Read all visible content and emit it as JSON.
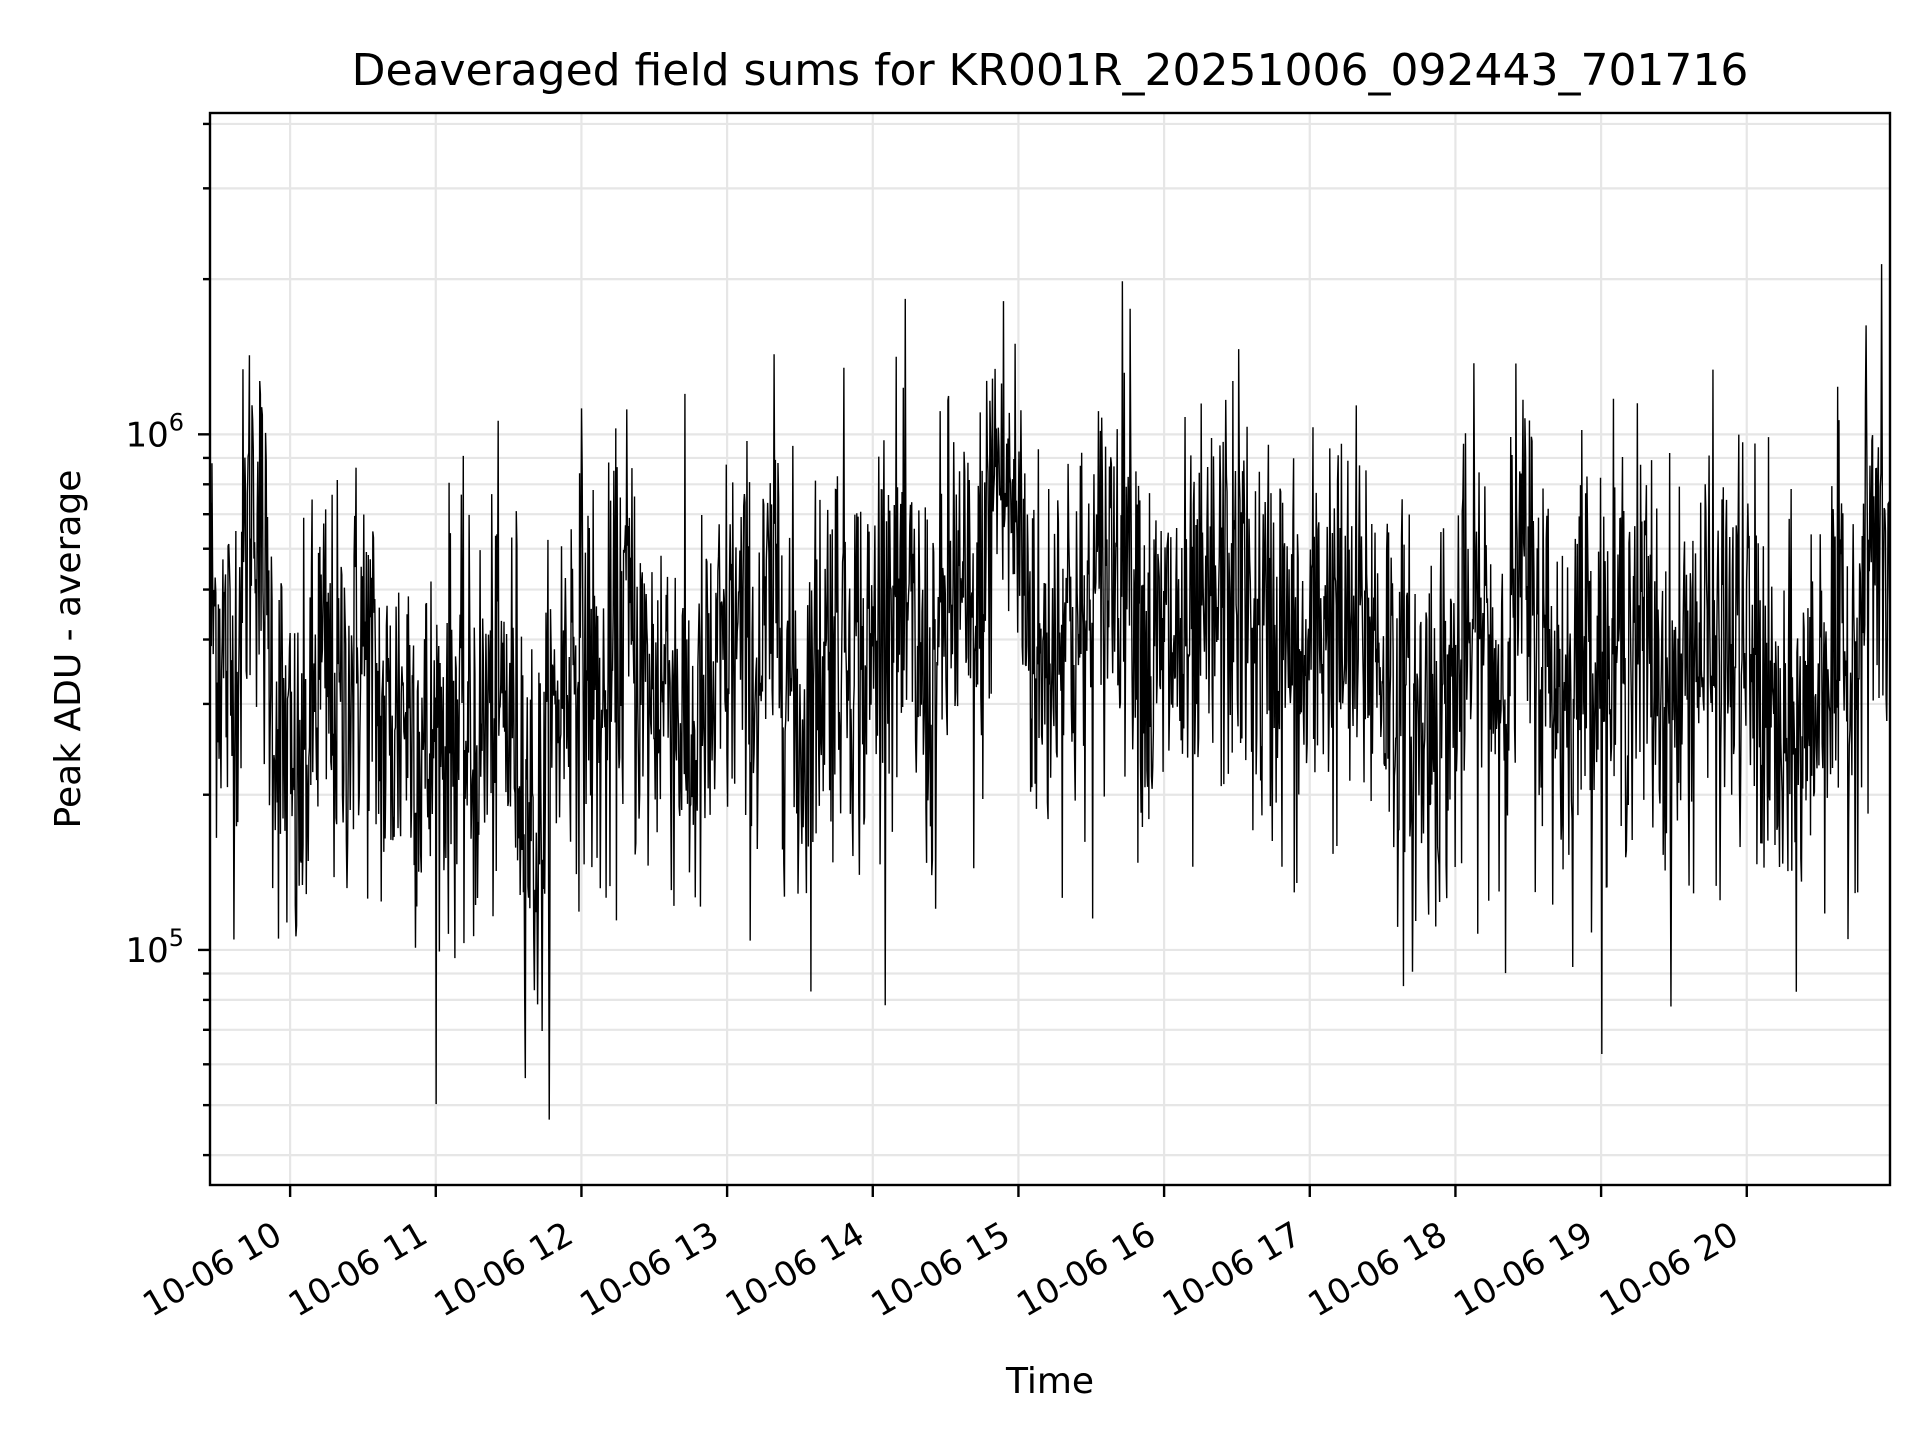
{
  "chart_data": {
    "type": "line",
    "title": "Deaveraged field sums for KR001R_20251006_092443_701716",
    "xlabel": "Time",
    "ylabel": "Peak ADU - average",
    "yscale": "log",
    "xlim": [
      "2025-10-06 09:27",
      "2025-10-06 20:59"
    ],
    "ylim": [
      35000,
      4200000
    ],
    "x_ticks": [
      {
        "value": "2025-10-06 10:00",
        "label": "10-06 10"
      },
      {
        "value": "2025-10-06 11:00",
        "label": "10-06 11"
      },
      {
        "value": "2025-10-06 12:00",
        "label": "10-06 12"
      },
      {
        "value": "2025-10-06 13:00",
        "label": "10-06 13"
      },
      {
        "value": "2025-10-06 14:00",
        "label": "10-06 14"
      },
      {
        "value": "2025-10-06 15:00",
        "label": "10-06 15"
      },
      {
        "value": "2025-10-06 16:00",
        "label": "10-06 16"
      },
      {
        "value": "2025-10-06 17:00",
        "label": "10-06 17"
      },
      {
        "value": "2025-10-06 18:00",
        "label": "10-06 18"
      },
      {
        "value": "2025-10-06 19:00",
        "label": "10-06 19"
      },
      {
        "value": "2025-10-06 20:00",
        "label": "10-06 20"
      }
    ],
    "y_ticks": [
      {
        "value": 100000,
        "base": "10",
        "exp": "5"
      },
      {
        "value": 1000000,
        "base": "10",
        "exp": "6"
      }
    ],
    "grid": true,
    "legend": "none",
    "line_color": "#000000",
    "series": [
      {
        "values_note_free": true,
        "points": [
          [
            "2025-10-06 09:27",
            480000
          ],
          [
            "2025-10-06 09:36",
            320000
          ],
          [
            "2025-10-06 09:45",
            850000
          ],
          [
            "2025-10-06 09:54",
            290000
          ],
          [
            "2025-10-06 10:03",
            180000
          ],
          [
            "2025-10-06 10:12",
            350000
          ],
          [
            "2025-10-06 10:21",
            290000
          ],
          [
            "2025-10-06 10:30",
            400000
          ],
          [
            "2025-10-06 10:39",
            250000
          ],
          [
            "2025-10-06 10:48",
            310000
          ],
          [
            "2025-10-06 10:57",
            230000
          ],
          [
            "2025-10-06 11:06",
            290000
          ],
          [
            "2025-10-06 11:15",
            240000
          ],
          [
            "2025-10-06 11:24",
            300000
          ],
          [
            "2025-10-06 11:33",
            280000
          ],
          [
            "2025-10-06 11:42",
            150000
          ],
          [
            "2025-10-06 11:51",
            320000
          ],
          [
            "2025-10-06 12:00",
            410000
          ],
          [
            "2025-10-06 12:09",
            260000
          ],
          [
            "2025-10-06 12:18",
            470000
          ],
          [
            "2025-10-06 12:27",
            300000
          ],
          [
            "2025-10-06 12:36",
            350000
          ],
          [
            "2025-10-06 12:45",
            240000
          ],
          [
            "2025-10-06 12:54",
            290000
          ],
          [
            "2025-10-06 13:03",
            420000
          ],
          [
            "2025-10-06 13:12",
            330000
          ],
          [
            "2025-10-06 13:21",
            500000
          ],
          [
            "2025-10-06 13:30",
            250000
          ],
          [
            "2025-10-06 13:39",
            380000
          ],
          [
            "2025-10-06 13:48",
            450000
          ],
          [
            "2025-10-06 13:57",
            330000
          ],
          [
            "2025-10-06 14:06",
            520000
          ],
          [
            "2025-10-06 14:15",
            410000
          ],
          [
            "2025-10-06 14:24",
            300000
          ],
          [
            "2025-10-06 14:33",
            520000
          ],
          [
            "2025-10-06 14:42",
            370000
          ],
          [
            "2025-10-06 14:51",
            900000
          ],
          [
            "2025-10-06 15:00",
            650000
          ],
          [
            "2025-10-06 15:09",
            330000
          ],
          [
            "2025-10-06 15:18",
            470000
          ],
          [
            "2025-10-06 15:27",
            380000
          ],
          [
            "2025-10-06 15:36",
            550000
          ],
          [
            "2025-10-06 15:45",
            700000
          ],
          [
            "2025-10-06 15:54",
            330000
          ],
          [
            "2025-10-06 16:03",
            400000
          ],
          [
            "2025-10-06 16:12",
            350000
          ],
          [
            "2025-10-06 16:21",
            460000
          ],
          [
            "2025-10-06 16:30",
            540000
          ],
          [
            "2025-10-06 16:39",
            380000
          ],
          [
            "2025-10-06 16:48",
            410000
          ],
          [
            "2025-10-06 16:57",
            320000
          ],
          [
            "2025-10-06 17:06",
            470000
          ],
          [
            "2025-10-06 17:15",
            380000
          ],
          [
            "2025-10-06 17:24",
            420000
          ],
          [
            "2025-10-06 17:33",
            350000
          ],
          [
            "2025-10-06 17:42",
            250000
          ],
          [
            "2025-10-06 17:51",
            290000
          ],
          [
            "2025-10-06 18:00",
            320000
          ],
          [
            "2025-10-06 18:09",
            430000
          ],
          [
            "2025-10-06 18:18",
            330000
          ],
          [
            "2025-10-06 18:27",
            550000
          ],
          [
            "2025-10-06 18:36",
            380000
          ],
          [
            "2025-10-06 18:45",
            300000
          ],
          [
            "2025-10-06 18:54",
            420000
          ],
          [
            "2025-10-06 19:03",
            330000
          ],
          [
            "2025-10-06 19:12",
            440000
          ],
          [
            "2025-10-06 19:21",
            370000
          ],
          [
            "2025-10-06 19:30",
            290000
          ],
          [
            "2025-10-06 19:39",
            400000
          ],
          [
            "2025-10-06 19:48",
            370000
          ],
          [
            "2025-10-06 19:57",
            400000
          ],
          [
            "2025-10-06 20:06",
            320000
          ],
          [
            "2025-10-06 20:15",
            220000
          ],
          [
            "2025-10-06 20:24",
            270000
          ],
          [
            "2025-10-06 20:33",
            380000
          ],
          [
            "2025-10-06 20:42",
            330000
          ],
          [
            "2025-10-06 20:51",
            650000
          ],
          [
            "2025-10-06 20:59",
            500000
          ]
        ],
        "noise_sigma_log10": 0.2
      }
    ]
  }
}
